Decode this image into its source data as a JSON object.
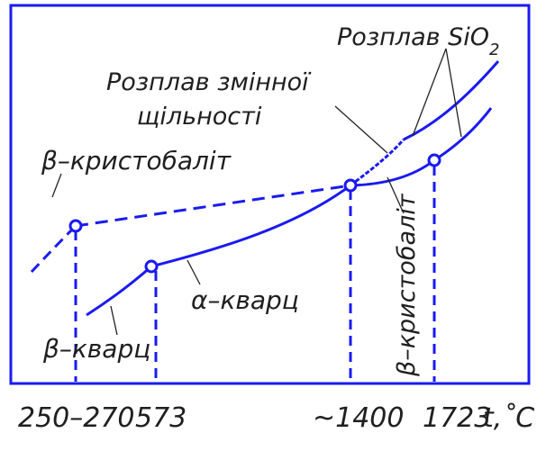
{
  "diagram": {
    "colors": {
      "curve": "#1a1af0",
      "frame": "#1a1af0",
      "text": "#1f1f1f",
      "background": "#ffffff"
    },
    "labels": {
      "melt_sio2": "Розплав SiO",
      "melt_sio2_sub": "2",
      "melt_variable_line1": "Розплав змінної",
      "melt_variable_line2": "щільності",
      "beta_cristobalite_left": "β–кристобаліт",
      "alpha_quartz": "α–кварц",
      "beta_quartz": "β–кварц",
      "beta_cristobalite_right": "β–кристобаліт"
    },
    "x_ticks": {
      "t1": "250–270",
      "t2": "573",
      "t3": "~1400",
      "t4": "1723",
      "axis_label": "t,˚С"
    }
  }
}
